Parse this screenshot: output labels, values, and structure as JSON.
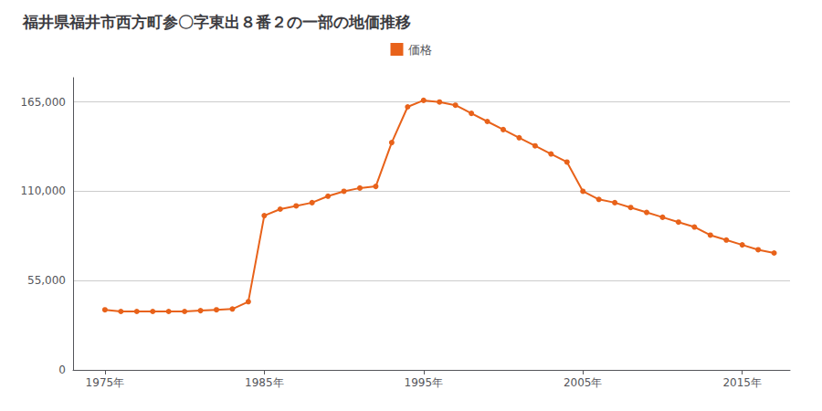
{
  "chart_data": {
    "type": "line",
    "title": "福井県福井市西方町参〇字東出８番２の一部の地価推移",
    "x": [
      1975,
      1976,
      1977,
      1978,
      1979,
      1980,
      1981,
      1982,
      1983,
      1984,
      1985,
      1986,
      1987,
      1988,
      1989,
      1990,
      1991,
      1992,
      1993,
      1994,
      1995,
      1996,
      1997,
      1998,
      1999,
      2000,
      2001,
      2002,
      2003,
      2004,
      2005,
      2006,
      2007,
      2008,
      2009,
      2010,
      2011,
      2012,
      2013,
      2014,
      2015,
      2016,
      2017
    ],
    "series": [
      {
        "name": "価格",
        "color": "#E8621A",
        "marker": "circle",
        "values": [
          37000,
          36000,
          36000,
          36000,
          36000,
          36000,
          36500,
          37000,
          37500,
          42000,
          95000,
          99000,
          101000,
          103000,
          107000,
          110000,
          112000,
          113000,
          140000,
          162000,
          166000,
          165000,
          163000,
          158000,
          153000,
          148000,
          143000,
          138000,
          133000,
          128000,
          110000,
          105000,
          103000,
          100000,
          97000,
          94000,
          91000,
          88000,
          83000,
          80000,
          77000,
          74000,
          72000
        ]
      }
    ],
    "xlim": [
      1973,
      2018
    ],
    "xticks": [
      {
        "value": 1975,
        "label": "1975年"
      },
      {
        "value": 1985,
        "label": "1985年"
      },
      {
        "value": 1995,
        "label": "1995年"
      },
      {
        "value": 2005,
        "label": "2005年"
      },
      {
        "value": 2015,
        "label": "2015年"
      }
    ],
    "ylim": [
      0,
      180000
    ],
    "yticks": [
      0,
      {
        "value": 55000,
        "label": "55,000"
      },
      {
        "value": 110000,
        "label": "110,000"
      },
      {
        "value": 165000,
        "label": "165,000"
      }
    ],
    "grid": true,
    "legend": "top"
  }
}
